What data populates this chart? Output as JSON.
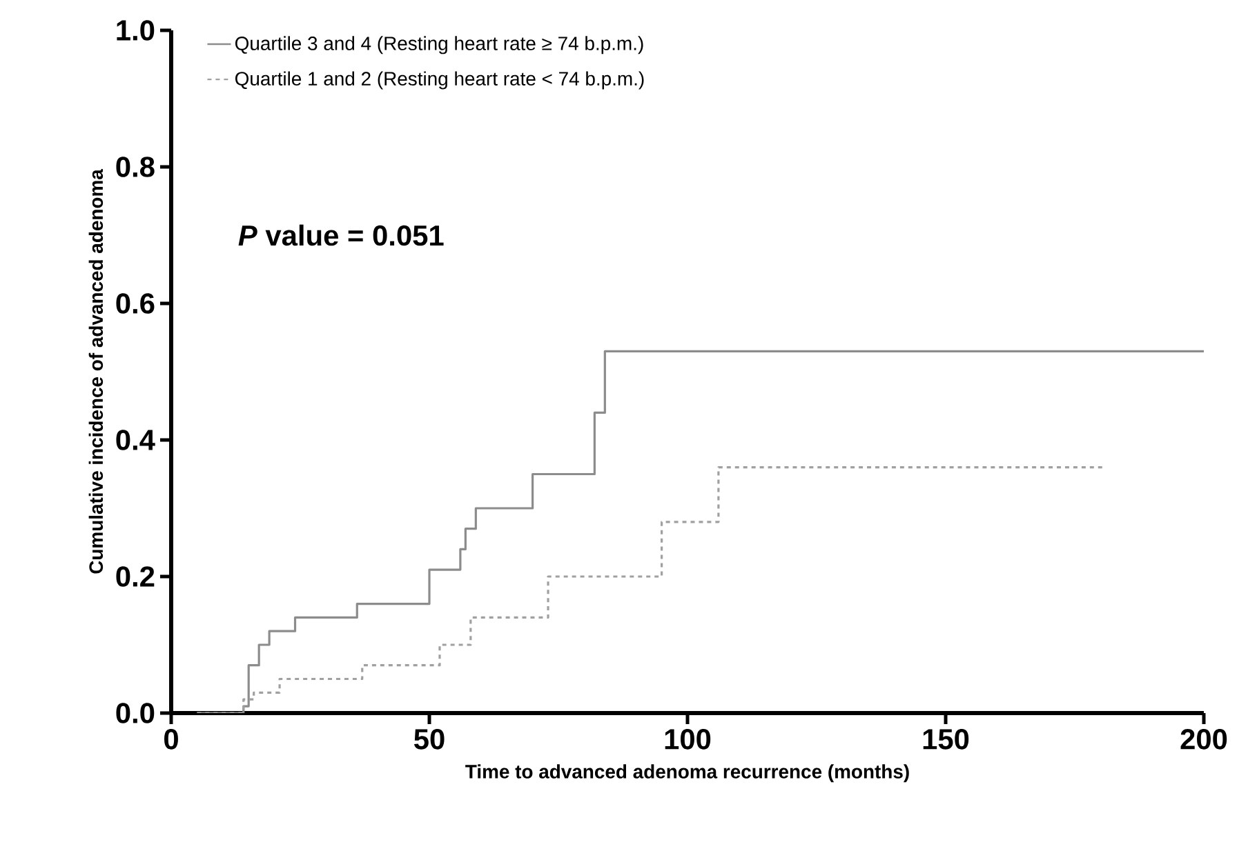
{
  "chart_data": {
    "type": "step",
    "xlabel": "Time to advanced adenoma recurrence (months)",
    "ylabel": "Cumulative incidence of advanced adenoma",
    "annotations": [
      "*P* value = 0.051"
    ],
    "xlim": [
      0,
      200
    ],
    "ylim": [
      0,
      1
    ],
    "xticks": [
      0,
      50,
      100,
      150,
      200
    ],
    "yticks": [
      {
        "value": 0,
        "label": "0.0"
      },
      0.2,
      0.4,
      0.6,
      0.8,
      {
        "value": 1,
        "label": "1.0"
      }
    ],
    "legend": "top left",
    "series": [
      {
        "name": "Quartile 3 and 4 (Resting heart rate ≥ 74 b.p.m.)",
        "color": "#8c8c8c",
        "line_style": "solid",
        "x": [
          5,
          14,
          15,
          17,
          19,
          24,
          36,
          50,
          56,
          57,
          59,
          70,
          82,
          84,
          200
        ],
        "values": [
          0,
          0.01,
          0.07,
          0.1,
          0.12,
          0.14,
          0.16,
          0.21,
          0.24,
          0.27,
          0.3,
          0.35,
          0.44,
          0.53,
          0.53
        ]
      },
      {
        "name": "Quartile 1 and 2 (Resting heart rate < 74 b.p.m.)",
        "color": "#a0a0a0",
        "line_style": "dashed",
        "x": [
          5,
          14,
          16,
          21,
          37,
          52,
          58,
          73,
          95,
          106,
          181
        ],
        "values": [
          0,
          0.02,
          0.03,
          0.05,
          0.07,
          0.1,
          0.14,
          0.2,
          0.28,
          0.36,
          0.36
        ]
      }
    ]
  }
}
